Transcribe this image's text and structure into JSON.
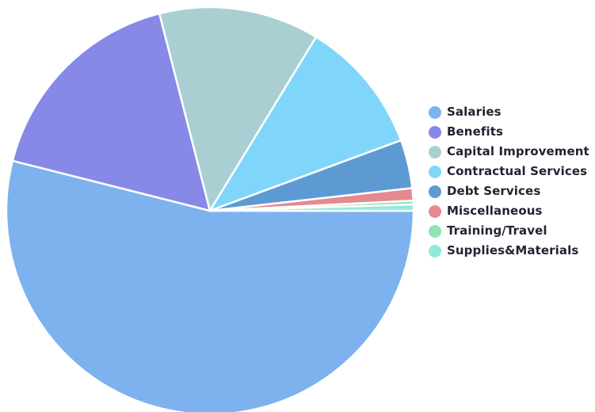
{
  "chart_data": {
    "type": "pie",
    "categories": [
      "Salaries",
      "Benefits",
      "Capital Improvement",
      "Contractual Services",
      "Debt Services",
      "Miscellaneous",
      "Training/Travel",
      "Supplies&Materials"
    ],
    "values": [
      54.7,
      17.3,
      12.9,
      10.8,
      3.9,
      1.0,
      0.3,
      0.5
    ],
    "colors": [
      "#7db2ef",
      "#8789e6",
      "#a9cfd3",
      "#80d6fa",
      "#5d9ad4",
      "#e58a8f",
      "#8fe3b0",
      "#8feadc"
    ],
    "legend": "right"
  }
}
